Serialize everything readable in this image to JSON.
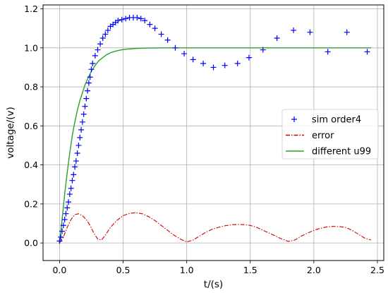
{
  "chart_data": {
    "type": "line",
    "title": "",
    "xlabel": "t/(s)",
    "ylabel": "voltage/(v)",
    "xlim": [
      -0.13,
      2.55
    ],
    "ylim": [
      -0.09,
      1.22
    ],
    "grid": true,
    "legend_position": "right",
    "xticks": [
      0.0,
      0.5,
      1.0,
      1.5,
      2.0,
      2.5
    ],
    "xtick_labels": [
      "0.0",
      "0.5",
      "1.0",
      "1.5",
      "2.0",
      "2.5"
    ],
    "yticks": [
      0.0,
      0.2,
      0.4,
      0.6,
      0.8,
      1.0,
      1.2
    ],
    "ytick_labels": [
      "0.0",
      "0.2",
      "0.4",
      "0.6",
      "0.8",
      "1.0",
      "1.2"
    ],
    "series": [
      {
        "name": "sim order4",
        "style": "markers",
        "marker": "+",
        "color": "#0000ff",
        "x": [
          0.0,
          0.01,
          0.02,
          0.03,
          0.04,
          0.05,
          0.06,
          0.07,
          0.08,
          0.09,
          0.1,
          0.11,
          0.12,
          0.13,
          0.14,
          0.15,
          0.16,
          0.17,
          0.18,
          0.19,
          0.2,
          0.21,
          0.22,
          0.23,
          0.24,
          0.25,
          0.26,
          0.28,
          0.3,
          0.32,
          0.34,
          0.36,
          0.38,
          0.4,
          0.42,
          0.44,
          0.46,
          0.49,
          0.52,
          0.55,
          0.58,
          0.61,
          0.64,
          0.67,
          0.71,
          0.75,
          0.8,
          0.85,
          0.91,
          0.98,
          1.05,
          1.13,
          1.21,
          1.3,
          1.4,
          1.49,
          1.6,
          1.71,
          1.84,
          1.97,
          2.11,
          2.26,
          2.42
        ],
        "y": [
          0.01,
          0.03,
          0.06,
          0.09,
          0.12,
          0.15,
          0.18,
          0.21,
          0.25,
          0.28,
          0.32,
          0.35,
          0.39,
          0.42,
          0.46,
          0.5,
          0.54,
          0.58,
          0.62,
          0.66,
          0.7,
          0.74,
          0.78,
          0.82,
          0.85,
          0.89,
          0.92,
          0.96,
          0.99,
          1.02,
          1.05,
          1.07,
          1.09,
          1.11,
          1.12,
          1.13,
          1.14,
          1.145,
          1.15,
          1.155,
          1.155,
          1.155,
          1.15,
          1.14,
          1.12,
          1.1,
          1.07,
          1.04,
          1.0,
          0.97,
          0.94,
          0.92,
          0.9,
          0.91,
          0.92,
          0.95,
          0.99,
          1.05,
          1.09,
          1.08,
          0.98,
          1.08,
          0.98
        ]
      },
      {
        "name": "error",
        "style": "dashdot",
        "color": "#cc0000",
        "x": [
          0.0,
          0.03,
          0.06,
          0.09,
          0.12,
          0.15,
          0.18,
          0.21,
          0.24,
          0.27,
          0.3,
          0.33,
          0.36,
          0.4,
          0.45,
          0.5,
          0.55,
          0.6,
          0.65,
          0.7,
          0.75,
          0.8,
          0.85,
          0.9,
          0.95,
          1.0,
          1.05,
          1.1,
          1.15,
          1.2,
          1.25,
          1.3,
          1.35,
          1.4,
          1.45,
          1.5,
          1.55,
          1.6,
          1.65,
          1.7,
          1.75,
          1.8,
          1.85,
          1.9,
          1.95,
          2.0,
          2.05,
          2.1,
          2.15,
          2.2,
          2.25,
          2.3,
          2.35,
          2.4,
          2.45
        ],
        "y": [
          0.0,
          0.03,
          0.08,
          0.12,
          0.145,
          0.15,
          0.14,
          0.12,
          0.09,
          0.05,
          0.02,
          0.015,
          0.04,
          0.08,
          0.115,
          0.14,
          0.152,
          0.155,
          0.15,
          0.135,
          0.115,
          0.09,
          0.065,
          0.04,
          0.02,
          0.005,
          0.015,
          0.035,
          0.055,
          0.07,
          0.08,
          0.088,
          0.093,
          0.095,
          0.094,
          0.09,
          0.08,
          0.065,
          0.05,
          0.035,
          0.02,
          0.008,
          0.015,
          0.035,
          0.05,
          0.065,
          0.075,
          0.082,
          0.085,
          0.084,
          0.08,
          0.065,
          0.045,
          0.025,
          0.015
        ]
      },
      {
        "name": "different u99",
        "style": "solid",
        "color": "#2ca02c",
        "x": [
          0.0,
          0.02,
          0.04,
          0.06,
          0.08,
          0.1,
          0.12,
          0.14,
          0.16,
          0.18,
          0.2,
          0.22,
          0.25,
          0.28,
          0.31,
          0.34,
          0.37,
          0.4,
          0.44,
          0.48,
          0.52,
          0.56,
          0.6,
          0.65,
          0.7,
          0.75,
          0.8,
          0.9,
          1.0,
          1.2,
          1.5,
          2.0,
          2.45
        ],
        "y": [
          0.0,
          0.12,
          0.25,
          0.36,
          0.46,
          0.55,
          0.62,
          0.68,
          0.73,
          0.77,
          0.81,
          0.84,
          0.88,
          0.91,
          0.935,
          0.95,
          0.965,
          0.975,
          0.983,
          0.989,
          0.993,
          0.995,
          0.997,
          0.998,
          0.999,
          0.9995,
          1.0,
          1.0,
          1.0,
          1.0,
          1.0,
          1.0,
          1.0
        ]
      }
    ]
  }
}
